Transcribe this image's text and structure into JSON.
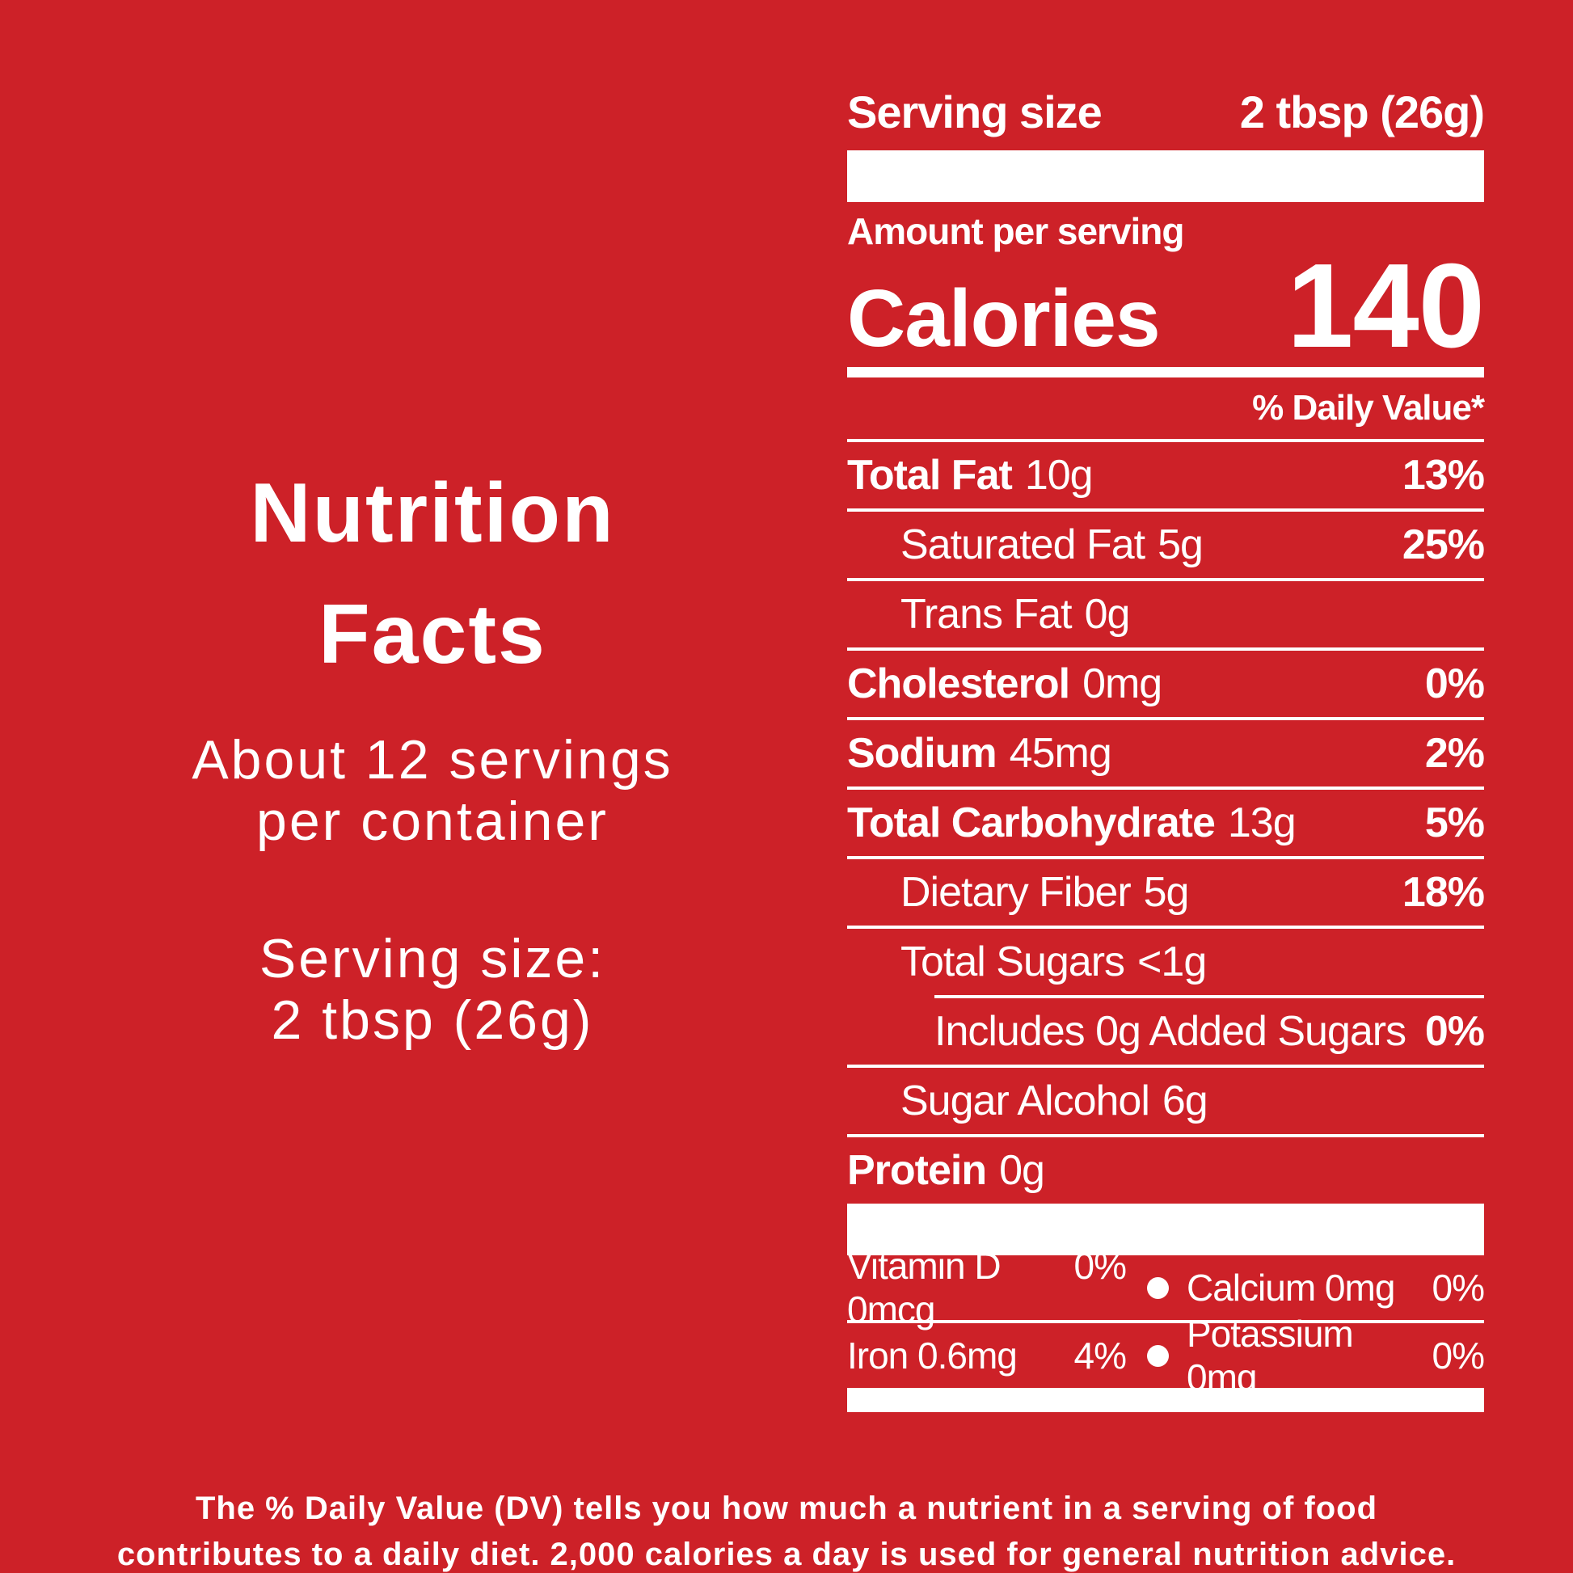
{
  "colors": {
    "background": "#CD2128",
    "text": "#FFFFFF"
  },
  "icons": {
    "bullet": "filled-circle"
  },
  "intro": {
    "title_line1": "Nutrition",
    "title_line2": "Facts",
    "servings_line1": "About 12 servings",
    "servings_line2": "per container",
    "serving_size_line1": "Serving size:",
    "serving_size_line2": "2 tbsp (26g)"
  },
  "label": {
    "serving_size_label": "Serving size",
    "serving_size_value": "2 tbsp (26g)",
    "amount_per_serving": "Amount per serving",
    "calories_label": "Calories",
    "calories_value": "140",
    "daily_value_header": "% Daily Value*",
    "rows": [
      {
        "name": "Total Fat",
        "value": "10g",
        "percent": "13%"
      },
      {
        "name": "Saturated Fat",
        "value": "5g",
        "percent": "25%"
      },
      {
        "name": "Trans Fat",
        "value": "0g",
        "percent": ""
      },
      {
        "name": "Cholesterol",
        "value": "0mg",
        "percent": "0%"
      },
      {
        "name": "Sodium",
        "value": "45mg",
        "percent": "2%"
      },
      {
        "name": "Total Carbohydrate",
        "value": "13g",
        "percent": "5%"
      },
      {
        "name": "Dietary Fiber",
        "value": "5g",
        "percent": "18%"
      },
      {
        "name": "Total Sugars",
        "value": "<1g",
        "percent": ""
      },
      {
        "name": "Includes 0g Added Sugars",
        "value": "",
        "percent": "0%"
      },
      {
        "name": "Sugar Alcohol",
        "value": "6g",
        "percent": ""
      },
      {
        "name": "Protein",
        "value": "0g",
        "percent": ""
      }
    ],
    "micronutrients": [
      {
        "left_name": "Vitamin D 0mcg",
        "left_percent": "0%",
        "right_name": "Calcium 0mg",
        "right_percent": "0%"
      },
      {
        "left_name": "Iron 0.6mg",
        "left_percent": "4%",
        "right_name": "Potassium 0mg",
        "right_percent": "0%"
      }
    ]
  },
  "footer": {
    "line1": "The % Daily Value (DV) tells you how much a nutrient in a serving of food",
    "line2": "contributes to a daily diet. 2,000 calories a day is used for general nutrition advice."
  }
}
